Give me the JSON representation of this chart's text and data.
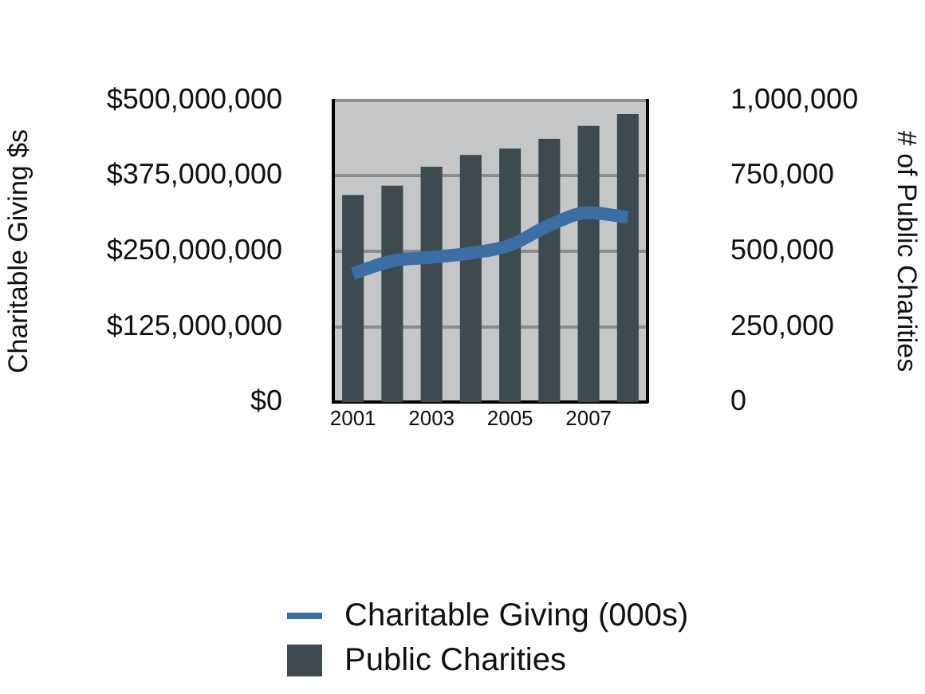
{
  "chart_data": {
    "type": "bar",
    "categories": [
      "2001",
      null,
      "2003",
      null,
      "2005",
      null,
      "2007",
      null
    ],
    "ylabel": "Charitable Giving $s",
    "y2label": "# of Public Charities",
    "ylim": [
      0,
      500000000
    ],
    "yticks": [
      {
        "value": 0,
        "label": "$0"
      },
      {
        "value": 125000000,
        "label": "$125,000,000"
      },
      {
        "value": 250000000,
        "label": "$250,000,000"
      },
      {
        "value": 375000000,
        "label": "$375,000,000"
      },
      {
        "value": 500000000,
        "label": "$500,000,000"
      }
    ],
    "y2lim": [
      0,
      1000000
    ],
    "y2ticks": [
      0,
      {
        "value": 250000,
        "label": "250,000"
      },
      {
        "value": 500000,
        "label": "500,000"
      },
      {
        "value": 750000,
        "label": "750,000"
      },
      {
        "value": 1000000,
        "label": "1,000,000"
      }
    ],
    "series": [
      {
        "name": "Charitable Giving (000s)",
        "type": "line",
        "color": "#3a6ea5",
        "values": [
          213000000,
          234000000,
          240000000,
          247000000,
          260000000,
          293000000,
          314000000,
          306000000
        ]
      },
      {
        "name": "Public Charities",
        "axis": "y2",
        "color": "#3d4a4f",
        "values": [
          686000,
          717000,
          780000,
          819000,
          840000,
          872000,
          915000,
          954000
        ]
      }
    ],
    "grid": "y",
    "legend": "bottom",
    "marker": "none"
  }
}
